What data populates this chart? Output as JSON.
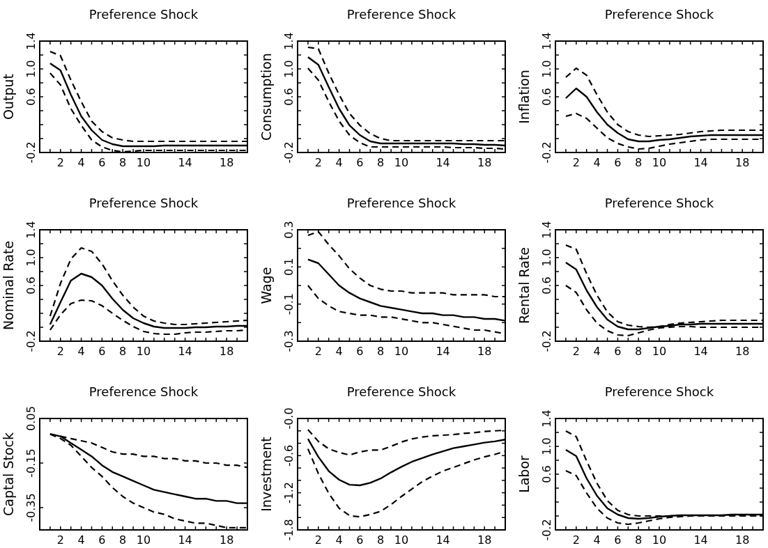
{
  "chart_data": [
    {
      "type": "line",
      "title": "Preference Shock",
      "ylabel": "Output",
      "x": [
        1,
        2,
        3,
        4,
        5,
        6,
        7,
        8,
        9,
        10,
        11,
        12,
        13,
        14,
        15,
        16,
        17,
        18,
        19,
        20
      ],
      "xlim": [
        0,
        20
      ],
      "xticks": [
        {
          "value": 1,
          "label": null
        },
        2,
        {
          "value": 3,
          "label": null
        },
        4,
        {
          "value": 5,
          "label": null
        },
        6,
        {
          "value": 7,
          "label": null
        },
        8,
        {
          "value": 9,
          "label": null
        },
        10,
        {
          "value": 11,
          "label": null
        },
        {
          "value": 12,
          "label": null
        },
        {
          "value": 13,
          "label": null
        },
        14,
        {
          "value": 15,
          "label": null
        },
        {
          "value": 16,
          "label": null
        },
        {
          "value": 17,
          "label": null
        },
        18,
        {
          "value": 19,
          "label": null
        }
      ],
      "ylim": [
        -0.2,
        1.4
      ],
      "yticks": [
        -0.2,
        {
          "value": 0,
          "label": null
        },
        {
          "value": 0.2,
          "label": null
        },
        {
          "value": 0.4,
          "label": null
        },
        0.6,
        {
          "value": 0.8,
          "label": null
        },
        {
          "value": 1,
          "label": "1.0"
        },
        {
          "value": 1.2,
          "label": null
        },
        1.4
      ],
      "series": [
        {
          "color": "#000000",
          "line_style": "solid",
          "values": [
            1.08,
            0.98,
            0.63,
            0.32,
            0.12,
            -0.02,
            -0.08,
            -0.11,
            -0.11,
            -0.11,
            -0.11,
            -0.1,
            -0.1,
            -0.1,
            -0.1,
            -0.1,
            -0.1,
            -0.1,
            -0.1,
            -0.1
          ]
        },
        {
          "color": "#000000",
          "line_style": "dashed",
          "values": [
            1.25,
            1.19,
            0.84,
            0.53,
            0.25,
            0.1,
            0.01,
            -0.02,
            -0.04,
            -0.04,
            -0.04,
            -0.04,
            -0.04,
            -0.04,
            -0.04,
            -0.04,
            -0.04,
            -0.04,
            -0.04,
            -0.04
          ]
        },
        {
          "color": "#000000",
          "line_style": "dashed",
          "values": [
            0.94,
            0.77,
            0.43,
            0.19,
            -0.02,
            -0.12,
            -0.17,
            -0.19,
            -0.18,
            -0.17,
            -0.17,
            -0.17,
            -0.17,
            -0.17,
            -0.17,
            -0.17,
            -0.17,
            -0.17,
            -0.17,
            -0.17
          ]
        }
      ]
    },
    {
      "type": "line",
      "title": "Preference Shock",
      "ylabel": "Consumption",
      "x": [
        1,
        2,
        3,
        4,
        5,
        6,
        7,
        8,
        9,
        10,
        11,
        12,
        13,
        14,
        15,
        16,
        17,
        18,
        19,
        20
      ],
      "xlim": [
        0,
        20
      ],
      "xticks": [
        {
          "value": 1,
          "label": null
        },
        2,
        {
          "value": 3,
          "label": null
        },
        4,
        {
          "value": 5,
          "label": null
        },
        6,
        {
          "value": 7,
          "label": null
        },
        8,
        {
          "value": 9,
          "label": null
        },
        10,
        {
          "value": 11,
          "label": null
        },
        {
          "value": 12,
          "label": null
        },
        {
          "value": 13,
          "label": null
        },
        14,
        {
          "value": 15,
          "label": null
        },
        {
          "value": 16,
          "label": null
        },
        {
          "value": 17,
          "label": null
        },
        18,
        {
          "value": 19,
          "label": null
        }
      ],
      "ylim": [
        -0.2,
        1.4
      ],
      "yticks": [
        -0.2,
        {
          "value": 0,
          "label": null
        },
        {
          "value": 0.2,
          "label": null
        },
        {
          "value": 0.4,
          "label": null
        },
        0.6,
        {
          "value": 0.8,
          "label": null
        },
        {
          "value": 1,
          "label": "1.0"
        },
        {
          "value": 1.2,
          "label": null
        },
        1.4
      ],
      "series": [
        {
          "color": "#000000",
          "line_style": "solid",
          "values": [
            1.17,
            1.06,
            0.74,
            0.43,
            0.19,
            0.05,
            -0.04,
            -0.07,
            -0.07,
            -0.07,
            -0.07,
            -0.07,
            -0.07,
            -0.07,
            -0.07,
            -0.08,
            -0.08,
            -0.09,
            -0.09,
            -0.1
          ]
        },
        {
          "color": "#000000",
          "line_style": "dashed",
          "values": [
            1.31,
            1.29,
            0.94,
            0.63,
            0.36,
            0.19,
            0.07,
            0.0,
            -0.03,
            -0.03,
            -0.03,
            -0.03,
            -0.03,
            -0.03,
            -0.03,
            -0.03,
            -0.03,
            -0.03,
            -0.03,
            -0.03
          ]
        },
        {
          "color": "#000000",
          "line_style": "dashed",
          "values": [
            1.01,
            0.84,
            0.53,
            0.25,
            0.05,
            -0.06,
            -0.12,
            -0.12,
            -0.12,
            -0.12,
            -0.12,
            -0.12,
            -0.12,
            -0.12,
            -0.13,
            -0.13,
            -0.13,
            -0.14,
            -0.14,
            -0.15
          ]
        }
      ]
    },
    {
      "type": "line",
      "title": "Preference Shock",
      "ylabel": "Inflation",
      "x": [
        1,
        2,
        3,
        4,
        5,
        6,
        7,
        8,
        9,
        10,
        11,
        12,
        13,
        14,
        15,
        16,
        17,
        18,
        19,
        20
      ],
      "xlim": [
        0,
        20
      ],
      "xticks": [
        {
          "value": 1,
          "label": null
        },
        2,
        {
          "value": 3,
          "label": null
        },
        4,
        {
          "value": 5,
          "label": null
        },
        6,
        {
          "value": 7,
          "label": null
        },
        8,
        {
          "value": 9,
          "label": null
        },
        10,
        {
          "value": 11,
          "label": null
        },
        {
          "value": 12,
          "label": null
        },
        {
          "value": 13,
          "label": null
        },
        14,
        {
          "value": 15,
          "label": null
        },
        {
          "value": 16,
          "label": null
        },
        {
          "value": 17,
          "label": null
        },
        18,
        {
          "value": 19,
          "label": null
        }
      ],
      "ylim": [
        -0.2,
        1.4
      ],
      "yticks": [
        -0.2,
        {
          "value": 0,
          "label": null
        },
        {
          "value": 0.2,
          "label": null
        },
        {
          "value": 0.4,
          "label": null
        },
        0.6,
        {
          "value": 0.8,
          "label": null
        },
        {
          "value": 1,
          "label": "1.0"
        },
        {
          "value": 1.2,
          "label": null
        },
        1.4
      ],
      "series": [
        {
          "color": "#000000",
          "line_style": "solid",
          "values": [
            0.58,
            0.72,
            0.6,
            0.38,
            0.2,
            0.08,
            -0.01,
            -0.04,
            -0.04,
            -0.02,
            -0.01,
            0.01,
            0.03,
            0.04,
            0.05,
            0.05,
            0.05,
            0.05,
            0.05,
            0.05
          ]
        },
        {
          "color": "#000000",
          "line_style": "dashed",
          "values": [
            0.88,
            1.01,
            0.91,
            0.63,
            0.38,
            0.2,
            0.1,
            0.05,
            0.03,
            0.04,
            0.05,
            0.06,
            0.08,
            0.1,
            0.11,
            0.12,
            0.12,
            0.12,
            0.12,
            0.12
          ]
        },
        {
          "color": "#000000",
          "line_style": "dashed",
          "values": [
            0.32,
            0.36,
            0.29,
            0.15,
            0.01,
            -0.07,
            -0.12,
            -0.15,
            -0.14,
            -0.11,
            -0.08,
            -0.06,
            -0.04,
            -0.02,
            -0.01,
            -0.01,
            -0.01,
            -0.01,
            -0.01,
            -0.01
          ]
        }
      ]
    },
    {
      "type": "line",
      "title": "Preference Shock",
      "ylabel": "Nominal Rate",
      "x": [
        1,
        2,
        3,
        4,
        5,
        6,
        7,
        8,
        9,
        10,
        11,
        12,
        13,
        14,
        15,
        16,
        17,
        18,
        19,
        20
      ],
      "xlim": [
        0,
        20
      ],
      "xticks": [
        {
          "value": 1,
          "label": null
        },
        2,
        {
          "value": 3,
          "label": null
        },
        4,
        {
          "value": 5,
          "label": null
        },
        6,
        {
          "value": 7,
          "label": null
        },
        8,
        {
          "value": 9,
          "label": null
        },
        10,
        {
          "value": 11,
          "label": null
        },
        {
          "value": 12,
          "label": null
        },
        {
          "value": 13,
          "label": null
        },
        14,
        {
          "value": 15,
          "label": null
        },
        {
          "value": 16,
          "label": null
        },
        {
          "value": 17,
          "label": null
        },
        18,
        {
          "value": 19,
          "label": null
        }
      ],
      "ylim": [
        -0.2,
        1.4
      ],
      "yticks": [
        -0.2,
        {
          "value": 0,
          "label": null
        },
        {
          "value": 0.2,
          "label": null
        },
        {
          "value": 0.4,
          "label": null
        },
        0.6,
        {
          "value": 0.8,
          "label": null
        },
        {
          "value": 1,
          "label": "1.0"
        },
        {
          "value": 1.2,
          "label": null
        },
        1.4
      ],
      "series": [
        {
          "color": "#000000",
          "line_style": "solid",
          "values": [
            0.04,
            0.36,
            0.67,
            0.77,
            0.72,
            0.6,
            0.41,
            0.25,
            0.13,
            0.06,
            0.01,
            -0.01,
            -0.01,
            -0.01,
            0.0,
            0.0,
            0.01,
            0.01,
            0.02,
            0.02
          ]
        },
        {
          "color": "#000000",
          "line_style": "dashed",
          "values": [
            0.16,
            0.63,
            0.98,
            1.14,
            1.09,
            0.91,
            0.67,
            0.46,
            0.29,
            0.16,
            0.09,
            0.06,
            0.04,
            0.04,
            0.05,
            0.06,
            0.07,
            0.08,
            0.09,
            0.1
          ]
        },
        {
          "color": "#000000",
          "line_style": "dashed",
          "values": [
            -0.04,
            0.18,
            0.34,
            0.39,
            0.38,
            0.31,
            0.2,
            0.1,
            0.01,
            -0.06,
            -0.09,
            -0.1,
            -0.1,
            -0.08,
            -0.07,
            -0.07,
            -0.06,
            -0.05,
            -0.05,
            -0.04
          ]
        }
      ]
    },
    {
      "type": "line",
      "title": "Preference Shock",
      "ylabel": "Wage",
      "x": [
        1,
        2,
        3,
        4,
        5,
        6,
        7,
        8,
        9,
        10,
        11,
        12,
        13,
        14,
        15,
        16,
        17,
        18,
        19,
        20
      ],
      "xlim": [
        0,
        20
      ],
      "xticks": [
        {
          "value": 1,
          "label": null
        },
        2,
        {
          "value": 3,
          "label": null
        },
        4,
        {
          "value": 5,
          "label": null
        },
        6,
        {
          "value": 7,
          "label": null
        },
        8,
        {
          "value": 9,
          "label": null
        },
        10,
        {
          "value": 11,
          "label": null
        },
        {
          "value": 12,
          "label": null
        },
        {
          "value": 13,
          "label": null
        },
        14,
        {
          "value": 15,
          "label": null
        },
        {
          "value": 16,
          "label": null
        },
        {
          "value": 17,
          "label": null
        },
        18,
        {
          "value": 19,
          "label": null
        }
      ],
      "ylim": [
        -0.3,
        0.3
      ],
      "yticks": [
        -0.3,
        {
          "value": -0.2,
          "label": null
        },
        -0.1,
        {
          "value": 0,
          "label": null
        },
        0.1,
        {
          "value": 0.2,
          "label": null
        },
        0.3
      ],
      "series": [
        {
          "color": "#000000",
          "line_style": "solid",
          "values": [
            0.14,
            0.12,
            0.06,
            0.0,
            -0.04,
            -0.07,
            -0.09,
            -0.11,
            -0.12,
            -0.13,
            -0.14,
            -0.15,
            -0.15,
            -0.16,
            -0.16,
            -0.17,
            -0.17,
            -0.18,
            -0.18,
            -0.19
          ]
        },
        {
          "color": "#000000",
          "line_style": "dashed",
          "values": [
            0.27,
            0.29,
            0.22,
            0.16,
            0.09,
            0.04,
            0.0,
            -0.02,
            -0.03,
            -0.03,
            -0.04,
            -0.04,
            -0.04,
            -0.04,
            -0.05,
            -0.05,
            -0.05,
            -0.05,
            -0.06,
            -0.06
          ]
        },
        {
          "color": "#000000",
          "line_style": "dashed",
          "values": [
            0.0,
            -0.07,
            -0.11,
            -0.14,
            -0.15,
            -0.16,
            -0.16,
            -0.17,
            -0.17,
            -0.18,
            -0.19,
            -0.2,
            -0.2,
            -0.21,
            -0.22,
            -0.23,
            -0.24,
            -0.24,
            -0.25,
            -0.26
          ]
        }
      ]
    },
    {
      "type": "line",
      "title": "Preference Shock",
      "ylabel": "Rental Rate",
      "x": [
        1,
        2,
        3,
        4,
        5,
        6,
        7,
        8,
        9,
        10,
        11,
        12,
        13,
        14,
        15,
        16,
        17,
        18,
        19,
        20
      ],
      "xlim": [
        0,
        20
      ],
      "xticks": [
        {
          "value": 1,
          "label": null
        },
        2,
        {
          "value": 3,
          "label": null
        },
        4,
        {
          "value": 5,
          "label": null
        },
        6,
        {
          "value": 7,
          "label": null
        },
        8,
        {
          "value": 9,
          "label": null
        },
        10,
        {
          "value": 11,
          "label": null
        },
        {
          "value": 12,
          "label": null
        },
        {
          "value": 13,
          "label": null
        },
        14,
        {
          "value": 15,
          "label": null
        },
        {
          "value": 16,
          "label": null
        },
        {
          "value": 17,
          "label": null
        },
        18,
        {
          "value": 19,
          "label": null
        }
      ],
      "ylim": [
        -0.2,
        1.4
      ],
      "yticks": [
        -0.2,
        {
          "value": 0,
          "label": null
        },
        {
          "value": 0.2,
          "label": null
        },
        {
          "value": 0.4,
          "label": null
        },
        0.6,
        {
          "value": 0.8,
          "label": null
        },
        {
          "value": 1,
          "label": "1.0"
        },
        {
          "value": 1.2,
          "label": null
        },
        1.4
      ],
      "series": [
        {
          "color": "#000000",
          "line_style": "solid",
          "values": [
            0.93,
            0.83,
            0.53,
            0.29,
            0.11,
            0.01,
            -0.03,
            -0.03,
            -0.01,
            0.01,
            0.02,
            0.04,
            0.04,
            0.05,
            0.05,
            0.05,
            0.05,
            0.05,
            0.05,
            0.05
          ]
        },
        {
          "color": "#000000",
          "line_style": "dashed",
          "values": [
            1.18,
            1.12,
            0.77,
            0.46,
            0.22,
            0.08,
            0.03,
            0.01,
            0.0,
            0.01,
            0.04,
            0.06,
            0.07,
            0.08,
            0.09,
            0.1,
            0.1,
            0.1,
            0.1,
            0.1
          ]
        },
        {
          "color": "#000000",
          "line_style": "dashed",
          "values": [
            0.6,
            0.5,
            0.25,
            0.06,
            -0.05,
            -0.11,
            -0.12,
            -0.08,
            -0.04,
            -0.01,
            0.0,
            0.01,
            0.01,
            0.0,
            0.0,
            0.0,
            0.0,
            0.0,
            0.0,
            0.0
          ]
        }
      ]
    },
    {
      "type": "line",
      "title": "Preference Shock",
      "ylabel": "Captal Stock",
      "x": [
        1,
        2,
        3,
        4,
        5,
        6,
        7,
        8,
        9,
        10,
        11,
        12,
        13,
        14,
        15,
        16,
        17,
        18,
        19,
        20
      ],
      "xlim": [
        0,
        20
      ],
      "xticks": [
        {
          "value": 1,
          "label": null
        },
        2,
        {
          "value": 3,
          "label": null
        },
        4,
        {
          "value": 5,
          "label": null
        },
        6,
        {
          "value": 7,
          "label": null
        },
        8,
        {
          "value": 9,
          "label": null
        },
        10,
        {
          "value": 11,
          "label": null
        },
        {
          "value": 12,
          "label": null
        },
        {
          "value": 13,
          "label": null
        },
        14,
        {
          "value": 15,
          "label": null
        },
        {
          "value": 16,
          "label": null
        },
        {
          "value": 17,
          "label": null
        },
        18,
        {
          "value": 19,
          "label": null
        }
      ],
      "ylim": [
        -0.45,
        0.05
      ],
      "yticks": [
        -0.35,
        -0.15,
        0.05
      ],
      "series": [
        {
          "color": "#000000",
          "line_style": "solid",
          "values": [
            -0.02,
            -0.03,
            -0.06,
            -0.09,
            -0.12,
            -0.16,
            -0.19,
            -0.21,
            -0.23,
            -0.25,
            -0.27,
            -0.28,
            -0.29,
            -0.3,
            -0.31,
            -0.31,
            -0.32,
            -0.32,
            -0.33,
            -0.33
          ]
        },
        {
          "color": "#000000",
          "line_style": "dashed",
          "values": [
            -0.02,
            -0.03,
            -0.04,
            -0.05,
            -0.06,
            -0.08,
            -0.1,
            -0.11,
            -0.11,
            -0.12,
            -0.12,
            -0.13,
            -0.13,
            -0.14,
            -0.14,
            -0.15,
            -0.15,
            -0.16,
            -0.16,
            -0.17
          ]
        },
        {
          "color": "#000000",
          "line_style": "dashed",
          "values": [
            -0.02,
            -0.04,
            -0.07,
            -0.12,
            -0.17,
            -0.21,
            -0.26,
            -0.3,
            -0.33,
            -0.35,
            -0.37,
            -0.38,
            -0.4,
            -0.41,
            -0.42,
            -0.42,
            -0.43,
            -0.44,
            -0.44,
            -0.44
          ]
        }
      ]
    },
    {
      "type": "line",
      "title": "Preference Shock",
      "ylabel": "Investment",
      "x": [
        1,
        2,
        3,
        4,
        5,
        6,
        7,
        8,
        9,
        10,
        11,
        12,
        13,
        14,
        15,
        16,
        17,
        18,
        19,
        20
      ],
      "xlim": [
        0,
        20
      ],
      "xticks": [
        {
          "value": 1,
          "label": null
        },
        2,
        {
          "value": 3,
          "label": null
        },
        4,
        {
          "value": 5,
          "label": null
        },
        6,
        {
          "value": 7,
          "label": null
        },
        8,
        {
          "value": 9,
          "label": null
        },
        10,
        {
          "value": 11,
          "label": null
        },
        {
          "value": 12,
          "label": null
        },
        {
          "value": 13,
          "label": null
        },
        14,
        {
          "value": 15,
          "label": null
        },
        {
          "value": 16,
          "label": null
        },
        {
          "value": 17,
          "label": null
        },
        18,
        {
          "value": 19,
          "label": null
        }
      ],
      "ylim": [
        -1.8,
        0
      ],
      "yticks": [
        -1.8,
        {
          "value": -1.6,
          "label": null
        },
        {
          "value": -1.4,
          "label": null
        },
        -1.2,
        {
          "value": -1,
          "label": null
        },
        {
          "value": -0.8,
          "label": null
        },
        -0.6,
        {
          "value": -0.4,
          "label": null
        },
        {
          "value": -0.2,
          "label": null
        },
        {
          "value": 0,
          "label": "-0.0"
        }
      ],
      "series": [
        {
          "color": "#000000",
          "line_style": "solid",
          "values": [
            -0.33,
            -0.62,
            -0.85,
            -0.99,
            -1.07,
            -1.08,
            -1.04,
            -0.97,
            -0.87,
            -0.78,
            -0.7,
            -0.64,
            -0.58,
            -0.53,
            -0.48,
            -0.45,
            -0.42,
            -0.39,
            -0.37,
            -0.34
          ]
        },
        {
          "color": "#000000",
          "line_style": "dashed",
          "values": [
            -0.18,
            -0.37,
            -0.49,
            -0.55,
            -0.59,
            -0.54,
            -0.51,
            -0.51,
            -0.45,
            -0.38,
            -0.33,
            -0.3,
            -0.28,
            -0.27,
            -0.26,
            -0.24,
            -0.23,
            -0.21,
            -0.2,
            -0.19
          ]
        },
        {
          "color": "#000000",
          "line_style": "dashed",
          "values": [
            -0.49,
            -0.89,
            -1.21,
            -1.45,
            -1.57,
            -1.59,
            -1.55,
            -1.5,
            -1.39,
            -1.26,
            -1.14,
            -1.02,
            -0.93,
            -0.85,
            -0.79,
            -0.73,
            -0.67,
            -0.62,
            -0.58,
            -0.53
          ]
        }
      ]
    },
    {
      "type": "line",
      "title": "Preference Shock",
      "ylabel": "Labor",
      "x": [
        1,
        2,
        3,
        4,
        5,
        6,
        7,
        8,
        9,
        10,
        11,
        12,
        13,
        14,
        15,
        16,
        17,
        18,
        19,
        20
      ],
      "xlim": [
        0,
        20
      ],
      "xticks": [
        {
          "value": 1,
          "label": null
        },
        2,
        {
          "value": 3,
          "label": null
        },
        4,
        {
          "value": 5,
          "label": null
        },
        6,
        {
          "value": 7,
          "label": null
        },
        8,
        {
          "value": 9,
          "label": null
        },
        10,
        {
          "value": 11,
          "label": null
        },
        {
          "value": 12,
          "label": null
        },
        {
          "value": 13,
          "label": null
        },
        14,
        {
          "value": 15,
          "label": null
        },
        {
          "value": 16,
          "label": null
        },
        {
          "value": 17,
          "label": null
        },
        18,
        {
          "value": 19,
          "label": null
        }
      ],
      "ylim": [
        -0.2,
        1.4
      ],
      "yticks": [
        -0.2,
        {
          "value": 0,
          "label": null
        },
        {
          "value": 0.2,
          "label": null
        },
        {
          "value": 0.4,
          "label": null
        },
        0.6,
        {
          "value": 0.8,
          "label": null
        },
        {
          "value": 1,
          "label": "1.0"
        },
        {
          "value": 1.2,
          "label": null
        },
        1.4
      ],
      "series": [
        {
          "color": "#000000",
          "line_style": "solid",
          "values": [
            0.95,
            0.86,
            0.54,
            0.29,
            0.11,
            0.02,
            -0.03,
            -0.04,
            -0.03,
            -0.01,
            0.0,
            0.01,
            0.01,
            0.01,
            0.01,
            0.01,
            0.02,
            0.02,
            0.02,
            0.02
          ]
        },
        {
          "color": "#000000",
          "line_style": "dashed",
          "values": [
            1.22,
            1.14,
            0.79,
            0.47,
            0.22,
            0.08,
            0.02,
            0.0,
            0.0,
            0.0,
            0.0,
            0.01,
            0.01,
            0.01,
            0.01,
            0.01,
            0.01,
            0.01,
            0.01,
            0.01
          ]
        },
        {
          "color": "#000000",
          "line_style": "dashed",
          "values": [
            0.65,
            0.58,
            0.33,
            0.11,
            -0.03,
            -0.1,
            -0.12,
            -0.1,
            -0.07,
            -0.04,
            -0.02,
            -0.01,
            0.0,
            0.0,
            0.0,
            0.0,
            0.0,
            0.0,
            0.0,
            0.0
          ]
        }
      ]
    }
  ]
}
